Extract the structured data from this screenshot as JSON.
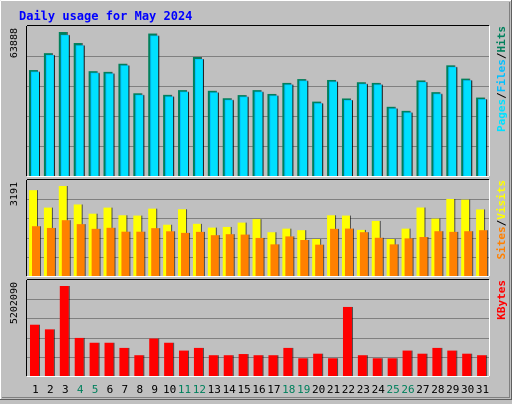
{
  "title": "Daily usage for May 2024",
  "colors": {
    "background": "#c0c0c0",
    "title": "#0000ff",
    "hits": "#00805c",
    "files": "#00c0ff",
    "pages": "#00e0ff",
    "visits": "#ffff00",
    "sites": "#ff8000",
    "kbytes": "#ff0000",
    "weekend_label": "#00805c",
    "weekday_label": "#000000"
  },
  "chart_data": [
    {
      "type": "bar",
      "name": "hits-files-pages",
      "categories": [
        "1",
        "2",
        "3",
        "4",
        "5",
        "6",
        "7",
        "8",
        "9",
        "10",
        "11",
        "12",
        "13",
        "14",
        "15",
        "16",
        "17",
        "18",
        "19",
        "20",
        "21",
        "22",
        "23",
        "24",
        "25",
        "26",
        "27",
        "28",
        "29",
        "30",
        "31"
      ],
      "ymax_label": "63888",
      "ylim": [
        0,
        63888
      ],
      "grid": true,
      "legend": [
        "Pages",
        "/",
        "Files",
        "/",
        "Hits"
      ],
      "series": [
        {
          "name": "Hits",
          "values": [
            47000,
            54500,
            63888,
            59000,
            46500,
            46200,
            49800,
            36700,
            63200,
            36000,
            38100,
            52800,
            37800,
            34500,
            35900,
            38100,
            36400,
            41300,
            43000,
            33000,
            42600,
            34400,
            41600,
            41300,
            30700,
            28900,
            42400,
            37200,
            49100,
            43200,
            34800
          ]
        },
        {
          "name": "Files",
          "values": [
            46300,
            53700,
            62600,
            58000,
            45800,
            45500,
            49100,
            36000,
            62300,
            35300,
            37400,
            51900,
            37100,
            33800,
            35200,
            37400,
            35700,
            40600,
            42300,
            32300,
            41900,
            33700,
            40900,
            40600,
            30000,
            28200,
            41700,
            36500,
            48400,
            42500,
            34100
          ]
        },
        {
          "name": "Pages",
          "values": [
            46000,
            53400,
            62300,
            57700,
            45500,
            45200,
            48800,
            35700,
            62000,
            35000,
            37100,
            51600,
            36800,
            33500,
            34900,
            37100,
            35400,
            40300,
            42000,
            32000,
            41600,
            33400,
            40600,
            40300,
            29700,
            27900,
            41400,
            36200,
            48100,
            42200,
            33800
          ]
        }
      ]
    },
    {
      "type": "bar",
      "name": "visits-sites",
      "categories": [
        "1",
        "2",
        "3",
        "4",
        "5",
        "6",
        "7",
        "8",
        "9",
        "10",
        "11",
        "12",
        "13",
        "14",
        "15",
        "16",
        "17",
        "18",
        "19",
        "20",
        "21",
        "22",
        "23",
        "24",
        "25",
        "26",
        "27",
        "28",
        "29",
        "30",
        "31"
      ],
      "ymax_label": "3191",
      "ylim": [
        0,
        3191
      ],
      "grid": true,
      "legend": [
        "Sites",
        "/",
        "Visits"
      ],
      "series": [
        {
          "name": "Visits",
          "values": [
            3043,
            2425,
            3191,
            2536,
            2209,
            2425,
            2153,
            2142,
            2388,
            1818,
            2366,
            1849,
            1716,
            1739,
            1893,
            2016,
            1551,
            1679,
            1625,
            1311,
            2153,
            2142,
            1634,
            1952,
            1311,
            1679,
            2428,
            2034,
            2731,
            2707,
            2360
          ]
        },
        {
          "name": "Sites",
          "values": [
            1765,
            1704,
            1978,
            1839,
            1672,
            1709,
            1571,
            1571,
            1696,
            1585,
            1529,
            1565,
            1447,
            1482,
            1468,
            1350,
            1122,
            1404,
            1276,
            1111,
            1672,
            1681,
            1553,
            1355,
            1122,
            1334,
            1382,
            1588,
            1565,
            1588,
            1624
          ]
        }
      ]
    },
    {
      "type": "bar",
      "name": "kbytes",
      "categories": [
        "1",
        "2",
        "3",
        "4",
        "5",
        "6",
        "7",
        "8",
        "9",
        "10",
        "11",
        "12",
        "13",
        "14",
        "15",
        "16",
        "17",
        "18",
        "19",
        "20",
        "21",
        "22",
        "23",
        "24",
        "25",
        "26",
        "27",
        "28",
        "29",
        "30",
        "31"
      ],
      "ymax_label": "5202090",
      "ylim": [
        0,
        5202090
      ],
      "grid": true,
      "legend": [
        "KBytes"
      ],
      "series": [
        {
          "name": "KBytes",
          "values": [
            2964000,
            2696000,
            5202090,
            2201000,
            1922000,
            1922000,
            1624000,
            1201000,
            2166000,
            1922000,
            1469000,
            1624000,
            1201000,
            1201000,
            1269000,
            1201000,
            1201000,
            1624000,
            1024000,
            1289000,
            1024000,
            3991000,
            1201000,
            1024000,
            1024000,
            1469000,
            1289000,
            1624000,
            1469000,
            1289000,
            1201000
          ]
        }
      ]
    }
  ]
}
